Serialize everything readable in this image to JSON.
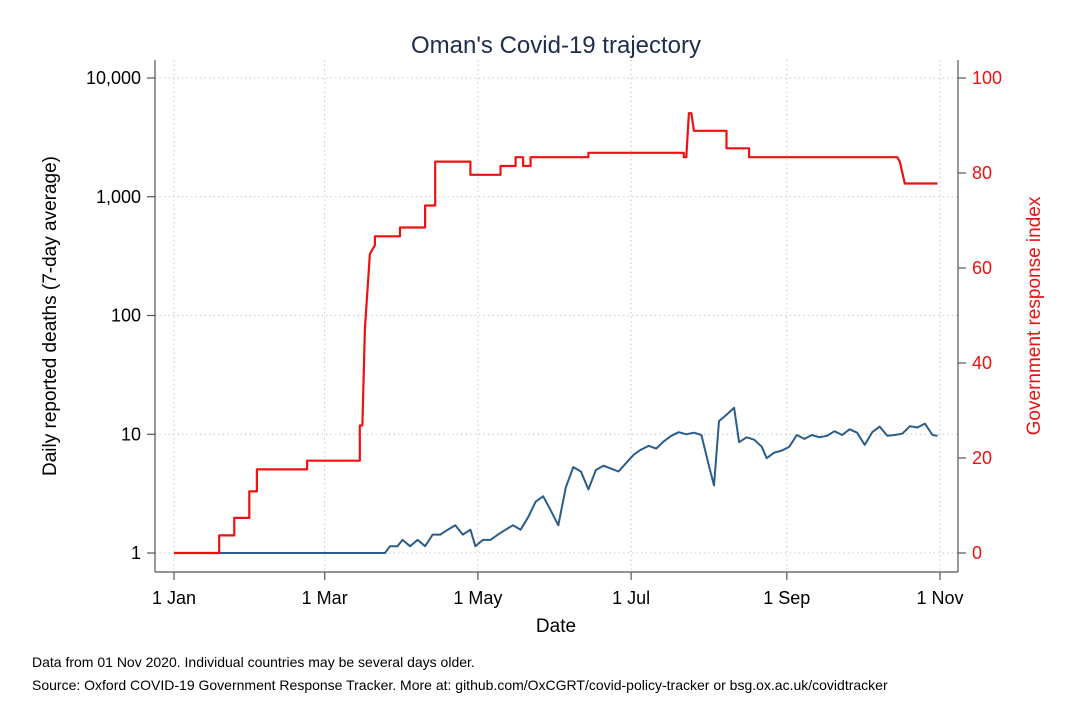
{
  "chart_data": {
    "type": "line",
    "title": "Oman's Covid-19 trajectory",
    "xlabel": "Date",
    "ylabel_left": "Daily reported deaths (7-day average)",
    "ylabel_right": "Government response index",
    "x_ticks": [
      "1 Jan",
      "1 Mar",
      "1 May",
      "1 Jul",
      "1 Sep",
      "1 Nov"
    ],
    "y_left_scale": "log",
    "y_left_range": [
      1,
      10000
    ],
    "y_left_ticks": [
      "1",
      "10",
      "100",
      "1,000",
      "10,000"
    ],
    "y_right_range": [
      0,
      100
    ],
    "y_right_ticks": [
      "0",
      "20",
      "40",
      "60",
      "80",
      "100"
    ],
    "grid": true,
    "colors": {
      "deaths": "#2b5d8c",
      "response": "#ee1111",
      "title": "#1f2d4d"
    },
    "series": [
      {
        "axis": "left",
        "points": [
          [
            "2020-01-01",
            1
          ],
          [
            "2020-03-25",
            1
          ],
          [
            "2020-03-27",
            1.14
          ],
          [
            "2020-03-30",
            1.14
          ],
          [
            "2020-04-01",
            1.29
          ],
          [
            "2020-04-04",
            1.14
          ],
          [
            "2020-04-07",
            1.29
          ],
          [
            "2020-04-10",
            1.14
          ],
          [
            "2020-04-13",
            1.43
          ],
          [
            "2020-04-16",
            1.43
          ],
          [
            "2020-04-19",
            1.57
          ],
          [
            "2020-04-22",
            1.71
          ],
          [
            "2020-04-25",
            1.43
          ],
          [
            "2020-04-28",
            1.57
          ],
          [
            "2020-04-30",
            1.14
          ],
          [
            "2020-05-03",
            1.29
          ],
          [
            "2020-05-06",
            1.29
          ],
          [
            "2020-05-09",
            1.43
          ],
          [
            "2020-05-12",
            1.57
          ],
          [
            "2020-05-15",
            1.71
          ],
          [
            "2020-05-18",
            1.57
          ],
          [
            "2020-05-21",
            2.0
          ],
          [
            "2020-05-24",
            2.71
          ],
          [
            "2020-05-27",
            3.0
          ],
          [
            "2020-05-30",
            2.29
          ],
          [
            "2020-06-02",
            1.71
          ],
          [
            "2020-06-05",
            3.57
          ],
          [
            "2020-06-08",
            5.29
          ],
          [
            "2020-06-11",
            4.86
          ],
          [
            "2020-06-14",
            3.43
          ],
          [
            "2020-06-17",
            5.0
          ],
          [
            "2020-06-20",
            5.43
          ],
          [
            "2020-06-23",
            5.14
          ],
          [
            "2020-06-26",
            4.86
          ],
          [
            "2020-06-29",
            5.71
          ],
          [
            "2020-07-02",
            6.71
          ],
          [
            "2020-07-05",
            7.43
          ],
          [
            "2020-07-08",
            8.0
          ],
          [
            "2020-07-11",
            7.57
          ],
          [
            "2020-07-14",
            8.71
          ],
          [
            "2020-07-17",
            9.71
          ],
          [
            "2020-07-20",
            10.4
          ],
          [
            "2020-07-23",
            10.0
          ],
          [
            "2020-07-26",
            10.3
          ],
          [
            "2020-07-29",
            9.86
          ],
          [
            "2020-08-01",
            5.43
          ],
          [
            "2020-08-03",
            3.71
          ],
          [
            "2020-08-05",
            12.9
          ],
          [
            "2020-08-08",
            14.6
          ],
          [
            "2020-08-11",
            16.7
          ],
          [
            "2020-08-13",
            8.57
          ],
          [
            "2020-08-16",
            9.43
          ],
          [
            "2020-08-19",
            9.0
          ],
          [
            "2020-08-22",
            7.86
          ],
          [
            "2020-08-24",
            6.29
          ],
          [
            "2020-08-27",
            7.0
          ],
          [
            "2020-08-30",
            7.29
          ],
          [
            "2020-09-02",
            7.86
          ],
          [
            "2020-09-05",
            9.86
          ],
          [
            "2020-09-08",
            9.14
          ],
          [
            "2020-09-11",
            9.86
          ],
          [
            "2020-09-14",
            9.43
          ],
          [
            "2020-09-17",
            9.71
          ],
          [
            "2020-09-20",
            10.6
          ],
          [
            "2020-09-23",
            9.86
          ],
          [
            "2020-09-26",
            11.0
          ],
          [
            "2020-09-29",
            10.3
          ],
          [
            "2020-10-02",
            8.14
          ],
          [
            "2020-10-05",
            10.4
          ],
          [
            "2020-10-08",
            11.6
          ],
          [
            "2020-10-11",
            9.71
          ],
          [
            "2020-10-14",
            9.86
          ],
          [
            "2020-10-17",
            10.1
          ],
          [
            "2020-10-20",
            11.7
          ],
          [
            "2020-10-23",
            11.4
          ],
          [
            "2020-10-26",
            12.3
          ],
          [
            "2020-10-29",
            9.86
          ],
          [
            "2020-10-31",
            9.71
          ]
        ]
      },
      {
        "axis": "right",
        "points": [
          [
            "2020-01-01",
            0
          ],
          [
            "2020-01-19",
            0
          ],
          [
            "2020-01-19",
            3.7
          ],
          [
            "2020-01-25",
            3.7
          ],
          [
            "2020-01-25",
            7.4
          ],
          [
            "2020-01-31",
            7.4
          ],
          [
            "2020-01-31",
            12.96
          ],
          [
            "2020-02-03",
            12.96
          ],
          [
            "2020-02-03",
            17.59
          ],
          [
            "2020-02-23",
            17.59
          ],
          [
            "2020-02-23",
            19.44
          ],
          [
            "2020-03-15",
            19.44
          ],
          [
            "2020-03-15",
            26.85
          ],
          [
            "2020-03-16",
            26.85
          ],
          [
            "2020-03-17",
            47.22
          ],
          [
            "2020-03-19",
            62.96
          ],
          [
            "2020-03-21",
            64.81
          ],
          [
            "2020-03-21",
            66.67
          ],
          [
            "2020-03-31",
            66.67
          ],
          [
            "2020-03-31",
            68.52
          ],
          [
            "2020-04-10",
            68.52
          ],
          [
            "2020-04-10",
            73.15
          ],
          [
            "2020-04-14",
            73.15
          ],
          [
            "2020-04-14",
            82.41
          ],
          [
            "2020-04-28",
            82.41
          ],
          [
            "2020-04-28",
            79.63
          ],
          [
            "2020-05-10",
            79.63
          ],
          [
            "2020-05-10",
            81.48
          ],
          [
            "2020-05-16",
            81.48
          ],
          [
            "2020-05-16",
            83.33
          ],
          [
            "2020-05-19",
            83.33
          ],
          [
            "2020-05-19",
            81.48
          ],
          [
            "2020-05-22",
            81.48
          ],
          [
            "2020-05-22",
            83.33
          ],
          [
            "2020-06-14",
            83.33
          ],
          [
            "2020-06-14",
            84.26
          ],
          [
            "2020-07-22",
            84.26
          ],
          [
            "2020-07-22",
            83.33
          ],
          [
            "2020-07-23",
            83.33
          ],
          [
            "2020-07-24",
            92.59
          ],
          [
            "2020-07-25",
            92.59
          ],
          [
            "2020-07-26",
            88.89
          ],
          [
            "2020-08-08",
            88.89
          ],
          [
            "2020-08-08",
            85.19
          ],
          [
            "2020-08-17",
            85.19
          ],
          [
            "2020-08-17",
            83.33
          ],
          [
            "2020-10-15",
            83.33
          ],
          [
            "2020-10-16",
            82.41
          ],
          [
            "2020-10-18",
            77.78
          ],
          [
            "2020-10-31",
            77.78
          ]
        ]
      }
    ]
  },
  "footnotes": {
    "line1": "Data from 01 Nov 2020. Individual countries may be several days older.",
    "line2": "Source: Oxford COVID-19 Government Response Tracker. More at: github.com/OxCGRT/covid-policy-tracker or bsg.ox.ac.uk/covidtracker"
  }
}
